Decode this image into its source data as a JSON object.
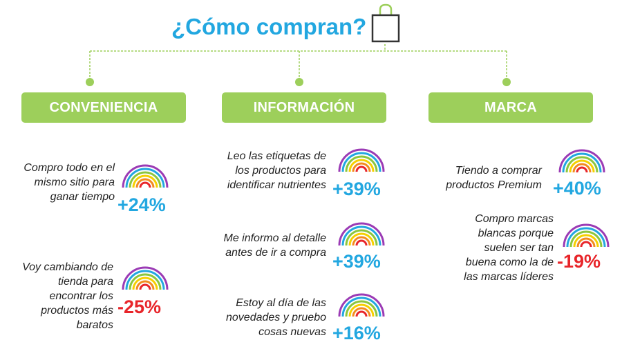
{
  "title": "¿Cómo compran?",
  "colors": {
    "accent_blue": "#22a7e0",
    "accent_green": "#9dcf5b",
    "negative_red": "#e8252a"
  },
  "icons": {
    "header": "shopping-bag-icon",
    "item": "rainbow-icon"
  },
  "categories": [
    {
      "label": "CONVENIENCIA",
      "items": [
        {
          "lines": [
            "Compro todo en el",
            "mismo sitio para",
            "ganar tiempo"
          ],
          "value": "+24%",
          "sentiment": "positive"
        },
        {
          "lines": [
            "Voy cambiando de",
            "tienda para",
            "encontrar los",
            "productos más",
            "baratos"
          ],
          "value": "-25%",
          "sentiment": "negative"
        }
      ]
    },
    {
      "label": "INFORMACIÓN",
      "items": [
        {
          "lines": [
            "Leo las etiquetas de",
            "los productos para",
            "identificar nutrientes"
          ],
          "value": "+39%",
          "sentiment": "positive"
        },
        {
          "lines": [
            "Me informo al detalle",
            "antes de ir a compra"
          ],
          "value": "+39%",
          "sentiment": "positive"
        },
        {
          "lines": [
            "Estoy al día de las",
            "novedades y pruebo",
            "cosas nuevas"
          ],
          "value": "+16%",
          "sentiment": "positive"
        }
      ]
    },
    {
      "label": "MARCA",
      "items": [
        {
          "lines": [
            "Tiendo a comprar",
            "productos Premium"
          ],
          "value": "+40%",
          "sentiment": "positive"
        },
        {
          "lines": [
            "Compro marcas",
            "blancas porque",
            "suelen ser tan",
            "buena como la de",
            "las marcas líderes"
          ],
          "value": "-19%",
          "sentiment": "negative"
        }
      ]
    }
  ]
}
